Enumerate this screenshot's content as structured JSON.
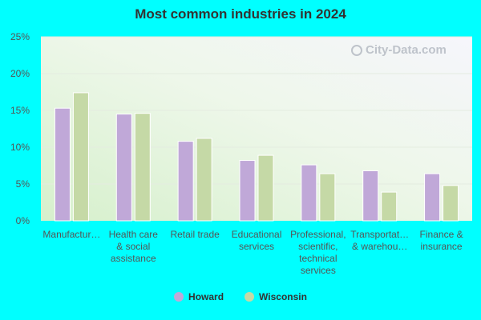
{
  "chart_data": {
    "type": "bar",
    "title": "Most common industries in 2024",
    "categories": [
      "Manufactur…",
      "Health care & social assistance",
      "Retail trade",
      "Educational services",
      "Professional, scientific, technical services",
      "Transportat… & warehou…",
      "Finance & insurance"
    ],
    "category_lines": [
      [
        "Manufactur…"
      ],
      [
        "Health care",
        "& social",
        "assistance"
      ],
      [
        "Retail trade"
      ],
      [
        "Educational",
        "services"
      ],
      [
        "Professional,",
        "scientific,",
        "technical",
        "services"
      ],
      [
        "Transportat…",
        "& warehou…"
      ],
      [
        "Finance &",
        "insurance"
      ]
    ],
    "series": [
      {
        "name": "Howard",
        "values": [
          15.3,
          14.5,
          10.8,
          8.2,
          7.6,
          6.8,
          6.4
        ],
        "color": "#c0a8d8"
      },
      {
        "name": "Wisconsin",
        "values": [
          17.4,
          14.6,
          11.2,
          8.9,
          6.4,
          3.9,
          4.8
        ],
        "color": "#c5d9a6"
      }
    ],
    "yticks": [
      "0%",
      "5%",
      "10%",
      "15%",
      "20%",
      "25%"
    ],
    "ylim": [
      0,
      25
    ],
    "xlabel": "",
    "ylabel": "",
    "legend_position": "bottom",
    "grid": true
  },
  "watermark": "City-Data.com"
}
